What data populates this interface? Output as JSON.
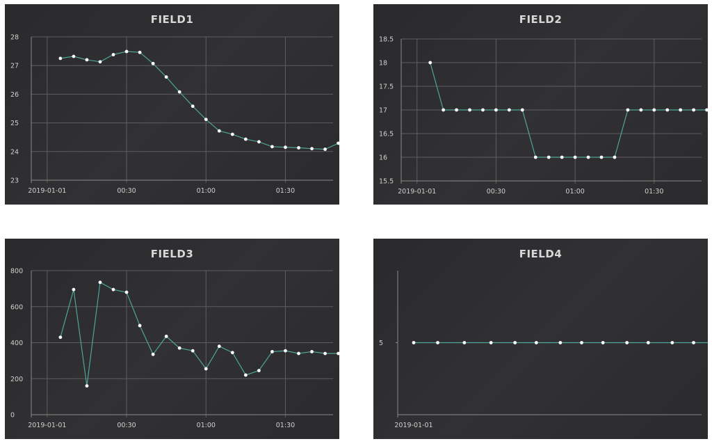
{
  "chart_data": [
    {
      "type": "line",
      "title": "FIELD1",
      "x_labels": [
        "2019-01-01",
        "00:30",
        "01:00",
        "01:30"
      ],
      "x_label_minutes": [
        0,
        30,
        60,
        90
      ],
      "xlim": [
        -6,
        108
      ],
      "ylim": [
        23,
        28
      ],
      "yticks": [
        23,
        24,
        25,
        26,
        27,
        28
      ],
      "ytick_labels": [
        "23",
        "24",
        "25",
        "26",
        "27",
        "28"
      ],
      "grid": true,
      "series": [
        {
          "x": [
            5,
            10,
            15,
            20,
            25,
            30,
            35,
            40,
            45,
            50,
            55,
            60,
            65,
            70,
            75,
            80,
            85,
            90,
            95,
            100,
            105,
            110
          ],
          "values": [
            27.25,
            27.32,
            27.2,
            27.13,
            27.38,
            27.49,
            27.46,
            27.07,
            26.6,
            26.08,
            25.58,
            25.12,
            24.72,
            24.6,
            24.43,
            24.34,
            24.17,
            24.15,
            24.13,
            24.1,
            24.08,
            24.29
          ]
        }
      ]
    },
    {
      "type": "line",
      "title": "FIELD2",
      "x_labels": [
        "2019-01-01",
        "00:30",
        "01:00",
        "01:30"
      ],
      "x_label_minutes": [
        0,
        30,
        60,
        90
      ],
      "xlim": [
        -6,
        108
      ],
      "ylim": [
        15.5,
        18.5
      ],
      "yticks": [
        15.5,
        16,
        16.5,
        17,
        17.5,
        18,
        18.5
      ],
      "ytick_labels": [
        "15.5",
        "16",
        "16.5",
        "17",
        "17.5",
        "18",
        "18.5"
      ],
      "grid": true,
      "series": [
        {
          "x": [
            5,
            10,
            15,
            20,
            25,
            30,
            35,
            40,
            45,
            50,
            55,
            60,
            65,
            70,
            75,
            80,
            85,
            90,
            95,
            100,
            105,
            110
          ],
          "values": [
            18,
            17,
            17,
            17,
            17,
            17,
            17,
            17,
            16,
            16,
            16,
            16,
            16,
            16,
            16,
            17,
            17,
            17,
            17,
            17,
            17,
            17
          ]
        }
      ]
    },
    {
      "type": "line",
      "title": "FIELD3",
      "x_labels": [
        "2019-01-01",
        "00:30",
        "01:00",
        "01:30"
      ],
      "x_label_minutes": [
        0,
        30,
        60,
        90
      ],
      "xlim": [
        -6,
        108
      ],
      "ylim": [
        0,
        800
      ],
      "yticks": [
        0,
        200,
        400,
        600,
        800
      ],
      "ytick_labels": [
        "0",
        "200",
        "400",
        "600",
        "800"
      ],
      "grid": true,
      "series": [
        {
          "x": [
            5,
            10,
            15,
            20,
            25,
            30,
            35,
            40,
            45,
            50,
            55,
            60,
            65,
            70,
            75,
            80,
            85,
            90,
            95,
            100,
            105,
            110
          ],
          "values": [
            430,
            695,
            160,
            735,
            695,
            680,
            495,
            335,
            435,
            370,
            355,
            255,
            380,
            345,
            220,
            245,
            350,
            355,
            340,
            350,
            340,
            340
          ]
        }
      ]
    },
    {
      "type": "line",
      "title": "FIELD4",
      "x_labels": [
        "2019-01-01"
      ],
      "x_label_minutes": [
        0
      ],
      "xlim": [
        -6,
        108
      ],
      "ylim": [
        4,
        6
      ],
      "yticks": [
        5
      ],
      "ytick_labels": [
        "5"
      ],
      "grid": false,
      "series": [
        {
          "x": [
            0,
            9,
            19,
            29,
            38,
            46,
            55,
            63,
            71,
            80,
            88,
            97,
            105,
            114
          ],
          "values": [
            5,
            5,
            5,
            5,
            5,
            5,
            5,
            5,
            5,
            5,
            5,
            5,
            5,
            5
          ]
        }
      ]
    }
  ]
}
